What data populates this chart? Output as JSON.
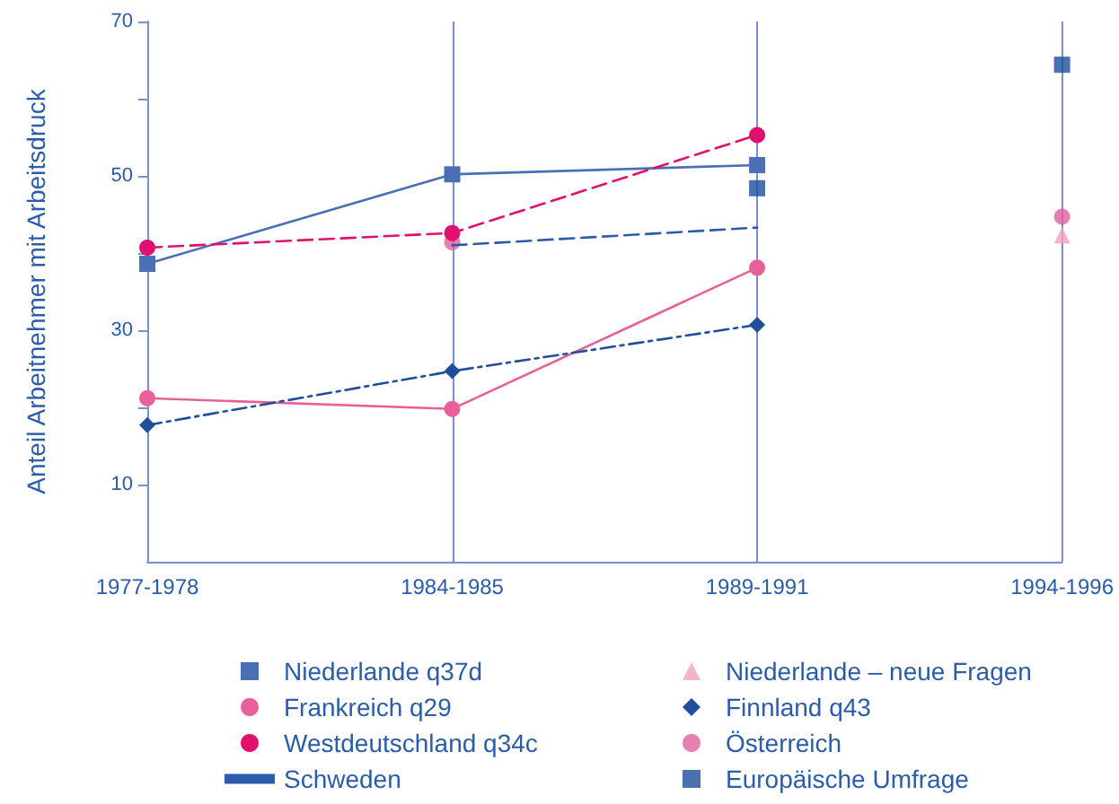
{
  "chart_data": {
    "type": "line",
    "ylabel": "Anteil Arbeitnehmer mit Arbeitsdruck",
    "categories": [
      "1977-1978",
      "1984-1985",
      "1989-1991",
      "1994-1996"
    ],
    "ylim": [
      0,
      70
    ],
    "yticks": [
      10,
      {
        "value": 20,
        "label": null
      },
      30,
      {
        "value": 40,
        "label": null
      },
      50,
      {
        "value": 60,
        "label": null
      },
      70
    ],
    "grid": "x",
    "legend": "bottom",
    "series": [
      {
        "name": "Niederlande q37d",
        "color": "#4a6fb5",
        "values": [
          38.6,
          50.2,
          51.4,
          null
        ],
        "marker": "square",
        "line_style": "solid"
      },
      {
        "name": "Frankreich q29",
        "color": "#e8609a",
        "values": [
          21.2,
          19.8,
          38.1,
          null
        ],
        "marker": "circle",
        "line_style": "solid"
      },
      {
        "name": "Westdeutschland q34c",
        "color": "#e0106e",
        "values": [
          40.7,
          42.6,
          55.3,
          null
        ],
        "marker": "circle",
        "line_style": "dashed"
      },
      {
        "name": "Schweden",
        "color": "#2a5caa",
        "values": [
          null,
          41,
          43.3,
          null
        ],
        "marker": "none",
        "line_style": "dashed"
      },
      {
        "name": "Niederlande – neue Fragen",
        "type": "scatter",
        "color": "#f0a0c0",
        "values": [
          null,
          null,
          null,
          42.3
        ],
        "marker": "triangle"
      },
      {
        "name": "Finnland q43",
        "color": "#1f4e9c",
        "values": [
          17.7,
          24.7,
          30.7,
          null
        ],
        "marker": "diamond",
        "line_style": "dotted"
      },
      {
        "name": "Österreich",
        "type": "scatter",
        "color": "#e060a0",
        "values": [
          null,
          41.4,
          null,
          44.7
        ],
        "marker": "circle"
      },
      {
        "name": "Europäische Umfrage",
        "type": "scatter",
        "color": "#1a4f9c",
        "values": [
          null,
          null,
          48.4,
          64.4
        ],
        "marker": "square"
      }
    ]
  }
}
